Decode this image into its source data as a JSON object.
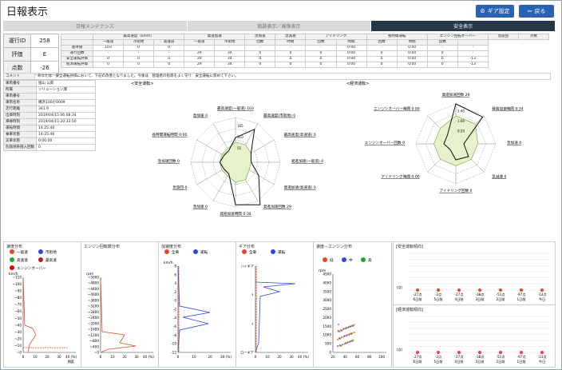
{
  "page": {
    "title": "日報表示",
    "gear_btn": "ギア設定",
    "back_btn": "戻る"
  },
  "tabs": [
    "日報メンテナンス",
    "軌跡表示／画像表示",
    "安全表示"
  ],
  "summary": [
    {
      "k": "運行ID",
      "v": "258"
    },
    {
      "k": "評価",
      "v": "E"
    },
    {
      "k": "点数",
      "v": "-26"
    }
  ],
  "stats": {
    "g1": [
      "最高速度（km/h）",
      "発進加速",
      "急加速",
      "急減速",
      "アイドリング",
      "長時間運転",
      "エンジン回転オーバー",
      "急旋回",
      "点数"
    ],
    "g2": [
      "一般道",
      "市街地",
      "高速道",
      "一般道",
      "市街地",
      "回数",
      "時間",
      "回数",
      "時間",
      "回数",
      "時間",
      "回数"
    ],
    "rows": [
      {
        "k": "基準値",
        "v": [
          "103",
          "0",
          "0",
          "-",
          "-",
          "-",
          "-",
          "-",
          "0:00",
          "-",
          "0:00",
          "-",
          "-"
        ]
      },
      {
        "k": "運行回数",
        "v": [
          "-",
          "-",
          "-",
          "29",
          "34",
          "0",
          "0",
          "0",
          "0:00",
          "0",
          "0:00",
          "0",
          "-"
        ]
      },
      {
        "k": "安全運転評価",
        "v": [
          "0",
          "0",
          "0",
          "29",
          "34",
          "0",
          "0",
          "0",
          "0:00",
          "0",
          "0:00",
          "0",
          "-13"
        ]
      },
      {
        "k": "経済運転評価",
        "v": [
          "0",
          "0",
          "0",
          "29",
          "34",
          "0",
          "0",
          "0",
          "0:00",
          "0",
          "0:00",
          "0",
          "-13"
        ]
      }
    ]
  },
  "comment": {
    "k": "コメント",
    "v": "あなたは　安全運転評価において、下記の改善となりました。今後は　管理者の指導をよく守り　安全運転に努めて下さい。"
  },
  "info": [
    {
      "k": "車両番号",
      "v": "福山 公郎"
    },
    {
      "k": "所属",
      "v": "ソリューション課"
    },
    {
      "k": "車両番号",
      "v": ""
    },
    {
      "k": "車両名称",
      "v": "横浜100だ0009"
    },
    {
      "k": "走行距離",
      "v": "341.9"
    },
    {
      "k": "出庫時刻",
      "v": "2019/04/15 06:08:34"
    },
    {
      "k": "帰庫時刻",
      "v": "2019/04/15 20:33:50"
    },
    {
      "k": "運転時間",
      "v": "14:25:46"
    },
    {
      "k": "乗車状態",
      "v": "14:25:46"
    },
    {
      "k": "実車状態",
      "v": "0:00:00"
    },
    {
      "k": "危険地帯侵入回数",
      "v": "0"
    }
  ],
  "radar_safe": {
    "title": "<安全運転>",
    "labels": [
      "最高速度(一般道) 103",
      "最高速度(市街地) 0",
      "最高速度(高速道) 0",
      "発進加速(一般道) 0",
      "発進加速(高速道) 0",
      "発進加速回数 29",
      "発進加速時間 0:34",
      "急加速 0",
      "急旋回 0",
      "急加速回数 0",
      "長時間運転時間 0:00",
      "急加速 0"
    ],
    "ticks": [
      "165",
      "110",
      "55"
    ]
  },
  "radar_eco": {
    "title": "<経済運転>",
    "labels": [
      "発進加速回数 29",
      "発進加速時間 0:34",
      "急加速 0",
      "急減速 0",
      "アイドリング回数 0",
      "アイドリング時間 0:00",
      "エンジンオーバー回数 0",
      "エンジンオーバー時間 0:00"
    ],
    "ticks": [
      "1:40",
      "1:00",
      "0:20"
    ]
  },
  "panels": [
    {
      "title": "速度分布",
      "legend": [
        "一般道",
        "市街地",
        "高速道",
        "最高道",
        "エンジンオーバー"
      ],
      "ylabel": "km/h",
      "yticks": [
        "~110",
        "~100",
        "~90",
        "~80",
        "~70",
        "~60",
        "~50",
        "~40",
        "~30",
        "~20",
        "~10",
        "~0"
      ],
      "xticks": [
        "0",
        "10",
        "20",
        "30",
        "40 (%)"
      ],
      "xlabel": "頻度"
    },
    {
      "title": "エンジン回転数分布",
      "ylabel": "rpm",
      "yticks": [
        "~5000",
        "~4800",
        "~4400",
        "~4000",
        "~3600",
        "~3200",
        "~2800",
        "~2400",
        "~2000",
        "~1600",
        "~1200",
        "~800",
        "~400",
        "~0"
      ],
      "xticks": [
        "0",
        "10",
        "20",
        "30",
        "40 (%)"
      ]
    },
    {
      "title": "加速度分布",
      "legend": [
        "全車",
        "運転"
      ],
      "ylabel": "km/h",
      "yticks": [
        "8",
        "6",
        "4",
        "2",
        "0",
        "-2",
        "-4",
        "-6",
        "-8",
        "-10",
        "-12"
      ],
      "xticks": [
        "0",
        "10",
        "20",
        "30 (%)"
      ]
    },
    {
      "title": "ギア分布",
      "legend": [
        "全車",
        "運転"
      ],
      "yticks": [
        "ハイギア",
        "↑",
        "↓",
        "ローギア"
      ],
      "xticks": [
        "0",
        "10",
        "20",
        "30",
        "40 (%)"
      ]
    },
    {
      "title": "速度－エンジン分布",
      "legend": [
        "低",
        "中",
        "高"
      ],
      "ylabel": "rpm",
      "yticks": [
        "4500",
        "4000",
        "3500",
        "3000",
        "2500",
        "2000",
        "1500",
        "1000",
        "500",
        "0"
      ],
      "xticks": [
        "20",
        "40",
        "60",
        "80",
        "100"
      ]
    }
  ],
  "trend_safe": {
    "title": "[安全運転傾向]",
    "ytick": "(点)",
    "points": [
      "-27点",
      "-2点",
      "-27点",
      "-38点",
      "-51点",
      "-97点",
      "-13点"
    ],
    "days": [
      "6日前",
      "5日前",
      "4日前",
      "3日前",
      "2日前",
      "1日前",
      "今日"
    ]
  },
  "trend_eco": {
    "title": "[経済運転傾向]",
    "ytick": "(点)",
    "points": [
      "-27点",
      "-2点",
      "-27点",
      "-38点",
      "-51点",
      "-97点",
      "-13点"
    ],
    "days": [
      "6日前",
      "5日前",
      "4日前",
      "3日前",
      "2日前",
      "1日前",
      "今日"
    ]
  }
}
